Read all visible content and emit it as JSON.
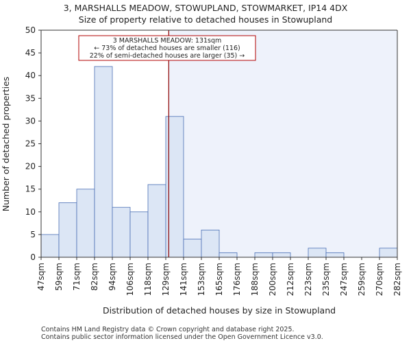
{
  "chart_data": {
    "type": "bar",
    "title": "3, MARSHALLS MEADOW, STOWUPLAND, STOWMARKET, IP14 4DX",
    "subtitle": "Size of property relative to detached houses in Stowupland",
    "xlabel": "Distribution of detached houses by size in Stowupland",
    "ylabel": "Number of detached properties",
    "ylim": [
      0,
      50
    ],
    "yticks": [
      0,
      5,
      10,
      15,
      20,
      25,
      30,
      35,
      40,
      45,
      50
    ],
    "bin_edges": [
      47,
      59,
      71,
      82,
      94,
      106,
      118,
      129,
      141,
      153,
      165,
      176,
      188,
      200,
      212,
      223,
      235,
      247,
      259,
      270,
      282
    ],
    "x_tick_labels": [
      "47sqm",
      "59sqm",
      "71sqm",
      "82sqm",
      "94sqm",
      "106sqm",
      "118sqm",
      "129sqm",
      "141sqm",
      "153sqm",
      "165sqm",
      "176sqm",
      "188sqm",
      "200sqm",
      "212sqm",
      "223sqm",
      "235sqm",
      "247sqm",
      "259sqm",
      "270sqm",
      "282sqm"
    ],
    "values": [
      5,
      12,
      15,
      42,
      11,
      10,
      16,
      31,
      4,
      6,
      1,
      0,
      1,
      1,
      0,
      2,
      1,
      0,
      0,
      2
    ],
    "grid": false,
    "marker": {
      "value": 131,
      "color": "#8b0000"
    },
    "annotation": {
      "lines": [
        "3 MARSHALLS MEADOW: 131sqm",
        "← 73% of detached houses are smaller (116)",
        "22% of semi-detached houses are larger (35) →"
      ],
      "border_color": "#b00000"
    },
    "colors": {
      "bar_fill": "#dce6f5",
      "bar_stroke": "#4a6fb5",
      "highlight_fill": "#eef2fb"
    }
  },
  "footer": {
    "line1": "Contains HM Land Registry data © Crown copyright and database right 2025.",
    "line2": "Contains public sector information licensed under the Open Government Licence v3.0."
  }
}
